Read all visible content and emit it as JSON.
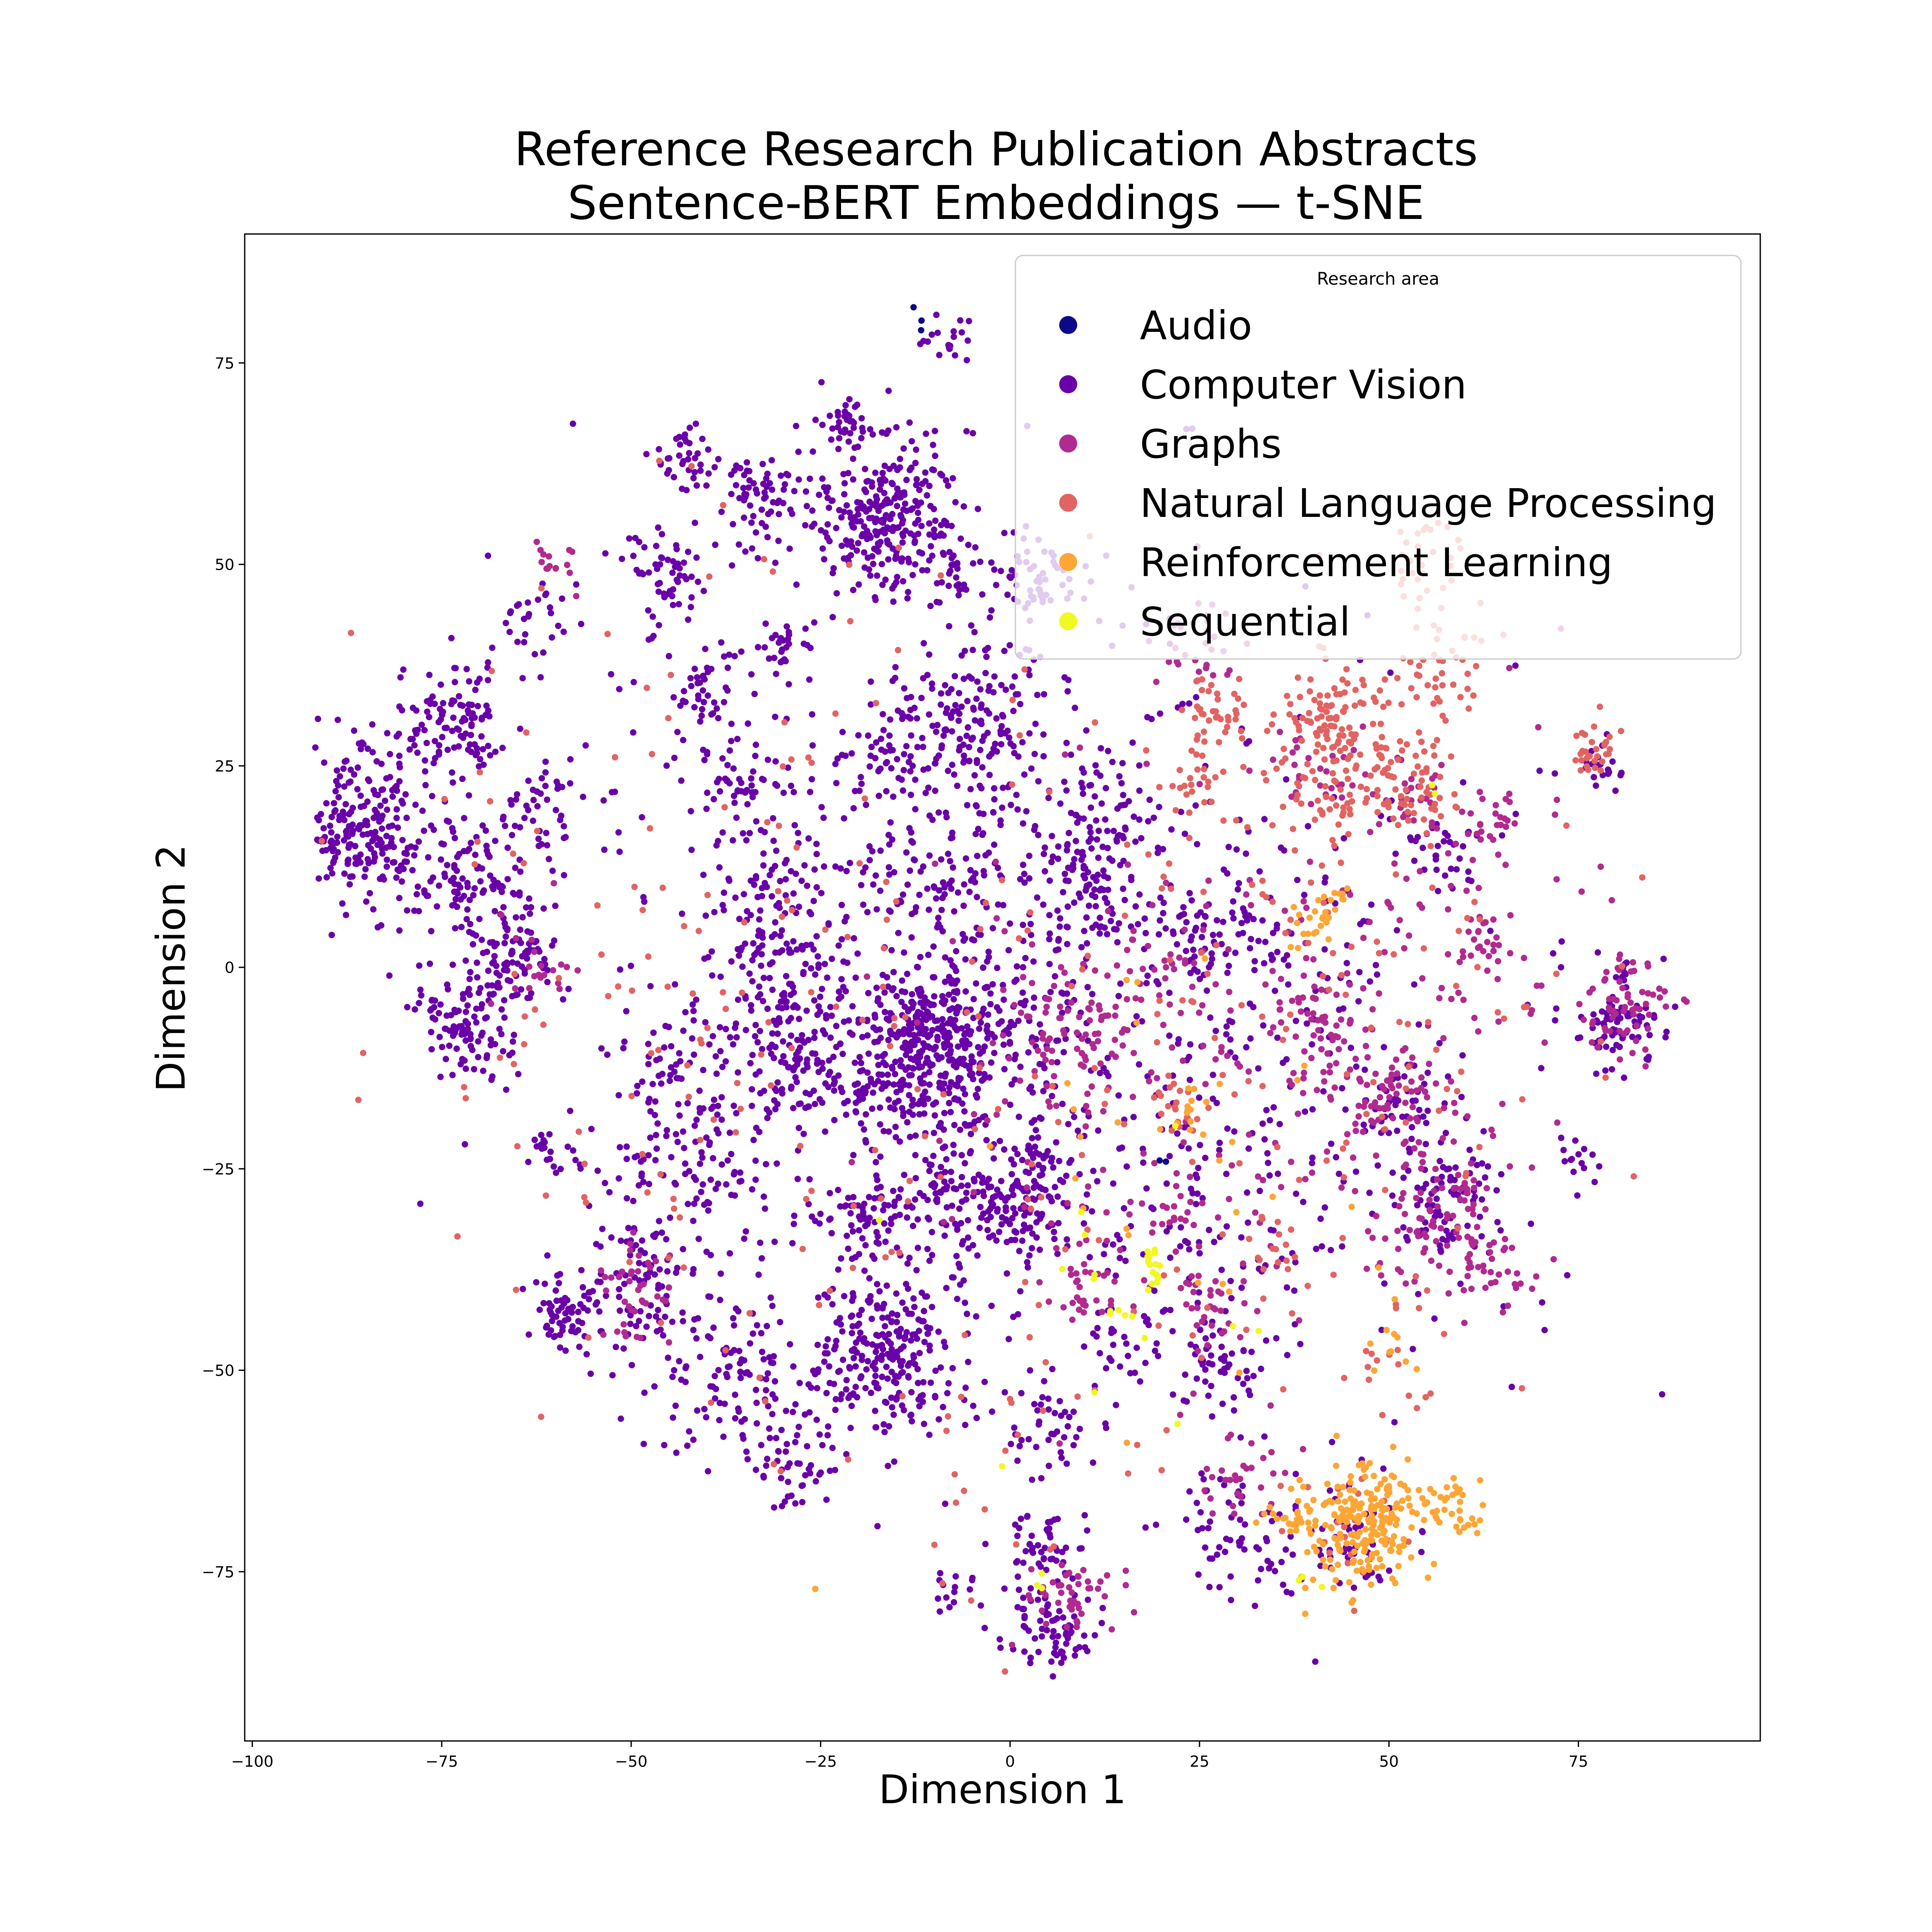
{
  "chart_data": {
    "type": "scatter",
    "title_line1": "Reference Research Publication Abstracts",
    "title_line2": "Sentence-BERT Embeddings — t-SNE",
    "xlabel": "Dimension 1",
    "ylabel": "Dimension 2",
    "xlim": [
      -101,
      99
    ],
    "ylim": [
      -96,
      91
    ],
    "xticks": [
      -100,
      -75,
      -50,
      -25,
      0,
      25,
      50,
      75
    ],
    "yticks": [
      -75,
      -50,
      -25,
      0,
      25,
      50,
      75
    ],
    "xtick_labels": [
      "−100",
      "−75",
      "−50",
      "−25",
      "0",
      "25",
      "50",
      "75"
    ],
    "ytick_labels": [
      "−75",
      "−50",
      "−25",
      "0",
      "25",
      "50",
      "75"
    ],
    "grid": false,
    "legend": {
      "title": "Research area",
      "placement": "top-right"
    },
    "series": [
      {
        "name": "Audio",
        "color": "#0d0887",
        "clusters": [
          {
            "x": -12,
            "y": 80,
            "sd": 1.5,
            "n": 3
          },
          {
            "x": 21,
            "y": -24,
            "sd": 1,
            "n": 2
          }
        ]
      },
      {
        "name": "Computer Vision",
        "color": "#6a00a8",
        "clusters": [
          {
            "x": -85,
            "y": 17,
            "sd": 5,
            "n": 260
          },
          {
            "x": -73,
            "y": 30,
            "sd": 4,
            "n": 120
          },
          {
            "x": -70,
            "y": 10,
            "sd": 4,
            "n": 100
          },
          {
            "x": -72,
            "y": -7,
            "sd": 3.5,
            "n": 110
          },
          {
            "x": -66,
            "y": 1,
            "sd": 3.5,
            "n": 80
          },
          {
            "x": -62,
            "y": 20,
            "sd": 3,
            "n": 40
          },
          {
            "x": -63,
            "y": 43,
            "sd": 3,
            "n": 30
          },
          {
            "x": -59,
            "y": -42,
            "sd": 2.5,
            "n": 60
          },
          {
            "x": -60,
            "y": -23,
            "sd": 2,
            "n": 20
          },
          {
            "x": -45,
            "y": 49,
            "sd": 3,
            "n": 60
          },
          {
            "x": -42,
            "y": 63,
            "sd": 2,
            "n": 40
          },
          {
            "x": -40,
            "y": 33,
            "sd": 3,
            "n": 50
          },
          {
            "x": -33,
            "y": 58,
            "sd": 2.5,
            "n": 60
          },
          {
            "x": -30,
            "y": 40,
            "sd": 2,
            "n": 30
          },
          {
            "x": -35,
            "y": 23,
            "sd": 3,
            "n": 50
          },
          {
            "x": -32,
            "y": 10,
            "sd": 4,
            "n": 60
          },
          {
            "x": -30,
            "y": 0,
            "sd": 4,
            "n": 60
          },
          {
            "x": -27,
            "y": -10,
            "sd": 5,
            "n": 140
          },
          {
            "x": -44,
            "y": -15,
            "sd": 5,
            "n": 80
          },
          {
            "x": -47,
            "y": -40,
            "sd": 6,
            "n": 120
          },
          {
            "x": -35,
            "y": -53,
            "sd": 5,
            "n": 100
          },
          {
            "x": -42,
            "y": -25,
            "sd": 4,
            "n": 60
          },
          {
            "x": -17,
            "y": 57,
            "sd": 5,
            "n": 280
          },
          {
            "x": -21,
            "y": 68,
            "sd": 2,
            "n": 30
          },
          {
            "x": -8,
            "y": 50,
            "sd": 3,
            "n": 50
          },
          {
            "x": -8,
            "y": 78,
            "sd": 1.5,
            "n": 20
          },
          {
            "x": -5,
            "y": 30,
            "sd": 5,
            "n": 150
          },
          {
            "x": -17,
            "y": 25,
            "sd": 3,
            "n": 40
          },
          {
            "x": -10,
            "y": 10,
            "sd": 4,
            "n": 60
          },
          {
            "x": -11,
            "y": -10,
            "sd": 5,
            "n": 320
          },
          {
            "x": -8,
            "y": -28,
            "sd": 4,
            "n": 100
          },
          {
            "x": 1,
            "y": -30,
            "sd": 3,
            "n": 90
          },
          {
            "x": 5,
            "y": -24,
            "sd": 2,
            "n": 30
          },
          {
            "x": -16,
            "y": -48,
            "sd": 5,
            "n": 250
          },
          {
            "x": -20,
            "y": -31,
            "sd": 3,
            "n": 60
          },
          {
            "x": -27,
            "y": -62,
            "sd": 3,
            "n": 40
          },
          {
            "x": -2,
            "y": -10,
            "sd": 8,
            "n": 120
          },
          {
            "x": 10,
            "y": 13,
            "sd": 3,
            "n": 70
          },
          {
            "x": 13,
            "y": 20,
            "sd": 3,
            "n": 40
          },
          {
            "x": 3,
            "y": 48,
            "sd": 3,
            "n": 50
          },
          {
            "x": 5,
            "y": -58,
            "sd": 3,
            "n": 40
          },
          {
            "x": 5,
            "y": -82,
            "sd": 3,
            "n": 80
          },
          {
            "x": 4,
            "y": -72,
            "sd": 3,
            "n": 50
          },
          {
            "x": -8,
            "y": -78,
            "sd": 1.5,
            "n": 15
          },
          {
            "x": 15,
            "y": -45,
            "sd": 3,
            "n": 30
          },
          {
            "x": 27,
            "y": -50,
            "sd": 3,
            "n": 50
          },
          {
            "x": 30,
            "y": 5,
            "sd": 3,
            "n": 40
          },
          {
            "x": 23,
            "y": 5,
            "sd": 3,
            "n": 30
          },
          {
            "x": 30,
            "y": -70,
            "sd": 4,
            "n": 60
          },
          {
            "x": 45,
            "y": -72,
            "sd": 4,
            "n": 50
          },
          {
            "x": 56,
            "y": 15,
            "sd": 3,
            "n": 30
          },
          {
            "x": 57,
            "y": -28,
            "sd": 4,
            "n": 80
          },
          {
            "x": 52,
            "y": -16,
            "sd": 2.5,
            "n": 40
          },
          {
            "x": 80,
            "y": -7,
            "sd": 3,
            "n": 80
          },
          {
            "x": 78,
            "y": 25,
            "sd": 1.5,
            "n": 20
          },
          {
            "x": 75,
            "y": -24,
            "sd": 1.5,
            "n": 15
          },
          {
            "x": -5,
            "y": 0,
            "sd": 25,
            "n": 650
          },
          {
            "x": 30,
            "y": -20,
            "sd": 20,
            "n": 300
          }
        ]
      },
      {
        "name": "Graphs",
        "color": "#b12a90",
        "clusters": [
          {
            "x": -50,
            "y": -40,
            "sd": 3,
            "n": 40
          },
          {
            "x": -63,
            "y": 0,
            "sd": 3,
            "n": 20
          },
          {
            "x": -60,
            "y": 50,
            "sd": 2,
            "n": 15
          },
          {
            "x": 8,
            "y": -8,
            "sd": 4,
            "n": 60
          },
          {
            "x": 10,
            "y": -40,
            "sd": 3,
            "n": 30
          },
          {
            "x": 8,
            "y": -78,
            "sd": 3,
            "n": 50
          },
          {
            "x": 26,
            "y": -42,
            "sd": 3,
            "n": 30
          },
          {
            "x": 22,
            "y": -30,
            "sd": 2,
            "n": 20
          },
          {
            "x": 40,
            "y": -5,
            "sd": 3,
            "n": 30
          },
          {
            "x": 43,
            "y": -10,
            "sd": 3,
            "n": 30
          },
          {
            "x": 50,
            "y": -16,
            "sd": 3,
            "n": 50
          },
          {
            "x": 57,
            "y": -30,
            "sd": 5,
            "n": 100
          },
          {
            "x": 63,
            "y": -38,
            "sd": 3,
            "n": 30
          },
          {
            "x": 63,
            "y": 3,
            "sd": 2,
            "n": 25
          },
          {
            "x": 63,
            "y": 18,
            "sd": 2,
            "n": 20
          },
          {
            "x": 81,
            "y": -5,
            "sd": 3,
            "n": 60
          },
          {
            "x": 53,
            "y": 20,
            "sd": 3,
            "n": 30
          },
          {
            "x": 32,
            "y": -63,
            "sd": 3,
            "n": 30
          },
          {
            "x": 20,
            "y": 0,
            "sd": 3,
            "n": 20
          },
          {
            "x": 40,
            "y": 25,
            "sd": 3,
            "n": 25
          },
          {
            "x": 25,
            "y": 40,
            "sd": 3,
            "n": 30
          },
          {
            "x": 20,
            "y": -15,
            "sd": 15,
            "n": 150
          },
          {
            "x": 55,
            "y": 0,
            "sd": 15,
            "n": 100
          }
        ]
      },
      {
        "name": "Natural Language Processing",
        "color": "#e16462",
        "clusters": [
          {
            "x": 27,
            "y": 31,
            "sd": 2.5,
            "n": 40
          },
          {
            "x": 43,
            "y": 30,
            "sd": 4,
            "n": 100
          },
          {
            "x": 58,
            "y": 37,
            "sd": 3,
            "n": 40
          },
          {
            "x": 52,
            "y": 25,
            "sd": 3,
            "n": 40
          },
          {
            "x": 42,
            "y": 22,
            "sd": 3,
            "n": 40
          },
          {
            "x": 24,
            "y": 23,
            "sd": 2,
            "n": 20
          },
          {
            "x": 77,
            "y": 27,
            "sd": 2,
            "n": 30
          },
          {
            "x": 54,
            "y": 20,
            "sd": 3,
            "n": 30
          },
          {
            "x": 55,
            "y": 50,
            "sd": 3,
            "n": 30
          },
          {
            "x": 22,
            "y": -17,
            "sd": 2,
            "n": 20
          },
          {
            "x": 35,
            "y": -35,
            "sd": 3,
            "n": 15
          },
          {
            "x": 45,
            "y": -70,
            "sd": 4,
            "n": 20
          },
          {
            "x": 50,
            "y": -50,
            "sd": 3,
            "n": 15
          },
          {
            "x": 40,
            "y": 0,
            "sd": 20,
            "n": 150
          },
          {
            "x": -40,
            "y": 0,
            "sd": 25,
            "n": 150
          },
          {
            "x": 0,
            "y": -40,
            "sd": 20,
            "n": 80
          }
        ]
      },
      {
        "name": "Reinforcement Learning",
        "color": "#fca636",
        "clusters": [
          {
            "x": 47,
            "y": -69,
            "sd": 4,
            "n": 220
          },
          {
            "x": 59,
            "y": -67,
            "sd": 2,
            "n": 30
          },
          {
            "x": 38,
            "y": -68,
            "sd": 2,
            "n": 20
          },
          {
            "x": 40,
            "y": 5,
            "sd": 2,
            "n": 20
          },
          {
            "x": 43,
            "y": 9,
            "sd": 1,
            "n": 8
          },
          {
            "x": 24,
            "y": -17,
            "sd": 1.5,
            "n": 10
          },
          {
            "x": 50,
            "y": -47,
            "sd": 2,
            "n": 10
          },
          {
            "x": -26,
            "y": -77,
            "sd": 0.5,
            "n": 1
          },
          {
            "x": 39,
            "y": -81,
            "sd": 0.5,
            "n": 1
          },
          {
            "x": 20,
            "y": -20,
            "sd": 15,
            "n": 30
          }
        ]
      },
      {
        "name": "Sequential",
        "color": "#f0f921",
        "clusters": [
          {
            "x": 19,
            "y": -37,
            "sd": 1,
            "n": 15
          },
          {
            "x": 15,
            "y": -42,
            "sd": 2.5,
            "n": 10
          },
          {
            "x": 4,
            "y": -76,
            "sd": 1,
            "n": 3
          },
          {
            "x": 40,
            "y": -77,
            "sd": 1,
            "n": 3
          },
          {
            "x": 56,
            "y": 22,
            "sd": 1,
            "n": 2
          },
          {
            "x": 5,
            "y": -40,
            "sd": 15,
            "n": 10
          }
        ]
      }
    ]
  }
}
